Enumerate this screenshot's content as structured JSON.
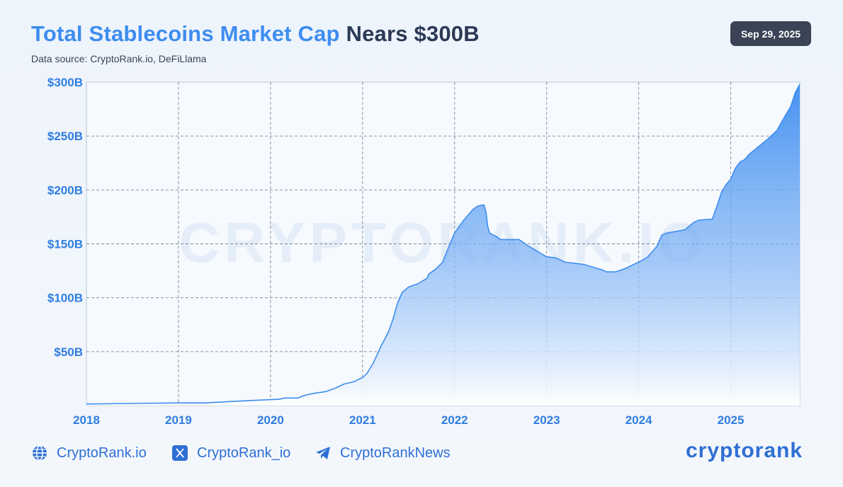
{
  "header": {
    "title_highlight": "Total Stablecoins Market Cap",
    "title_rest": " Nears $300B",
    "source": "Data source: CryptoRank.io, DeFiLlama",
    "date": "Sep 29, 2025"
  },
  "watermark": "CRYPTORANK.IO",
  "colors": {
    "accent": "#3d8df0",
    "title_dark": "#2b3a55",
    "line": "#3d8df0",
    "badge_bg": "#3b4356"
  },
  "chart_data": {
    "type": "area",
    "title": "Total Stablecoins Market Cap Nears $300B",
    "xlabel": "",
    "ylabel": "",
    "x_ticks": [
      "2018",
      "2019",
      "2020",
      "2021",
      "2022",
      "2023",
      "2024",
      "2025"
    ],
    "y_ticks": [
      "$50B",
      "$100B",
      "$150B",
      "$200B",
      "$250B",
      "$300B"
    ],
    "y_tick_values": [
      50,
      100,
      150,
      200,
      250,
      300
    ],
    "xlim": [
      2018.0,
      2025.75
    ],
    "ylim": [
      0,
      300
    ],
    "grid": true,
    "series": [
      {
        "values_unit": "billion USD",
        "points": [
          [
            2018.0,
            1.5
          ],
          [
            2018.5,
            2.0
          ],
          [
            2019.0,
            2.5
          ],
          [
            2019.3,
            2.5
          ],
          [
            2019.5,
            3.5
          ],
          [
            2019.75,
            4.5
          ],
          [
            2020.0,
            5.5
          ],
          [
            2020.1,
            6.0
          ],
          [
            2020.15,
            7.0
          ],
          [
            2020.3,
            7.0
          ],
          [
            2020.35,
            9.0
          ],
          [
            2020.45,
            11.0
          ],
          [
            2020.6,
            13.0
          ],
          [
            2020.7,
            16.0
          ],
          [
            2020.8,
            20.0
          ],
          [
            2020.9,
            22.0
          ],
          [
            2021.0,
            26.0
          ],
          [
            2021.05,
            30.0
          ],
          [
            2021.12,
            40.0
          ],
          [
            2021.2,
            55.0
          ],
          [
            2021.28,
            68.0
          ],
          [
            2021.33,
            80.0
          ],
          [
            2021.38,
            95.0
          ],
          [
            2021.43,
            105.0
          ],
          [
            2021.5,
            110.0
          ],
          [
            2021.6,
            113.0
          ],
          [
            2021.7,
            118.0
          ],
          [
            2021.72,
            122.0
          ],
          [
            2021.8,
            127.0
          ],
          [
            2021.87,
            133.0
          ],
          [
            2021.95,
            150.0
          ],
          [
            2022.0,
            160.0
          ],
          [
            2022.1,
            172.0
          ],
          [
            2022.2,
            182.0
          ],
          [
            2022.25,
            185.0
          ],
          [
            2022.3,
            186.0
          ],
          [
            2022.32,
            186.0
          ],
          [
            2022.34,
            180.0
          ],
          [
            2022.36,
            166.0
          ],
          [
            2022.38,
            160.0
          ],
          [
            2022.45,
            157.0
          ],
          [
            2022.5,
            154.0
          ],
          [
            2022.7,
            154.0
          ],
          [
            2022.8,
            148.0
          ],
          [
            2022.9,
            143.0
          ],
          [
            2023.0,
            138.0
          ],
          [
            2023.1,
            137.0
          ],
          [
            2023.2,
            133.0
          ],
          [
            2023.4,
            131.0
          ],
          [
            2023.6,
            126.0
          ],
          [
            2023.65,
            124.0
          ],
          [
            2023.75,
            124.0
          ],
          [
            2023.85,
            127.0
          ],
          [
            2023.95,
            131.0
          ],
          [
            2024.0,
            133.0
          ],
          [
            2024.1,
            138.0
          ],
          [
            2024.2,
            148.0
          ],
          [
            2024.25,
            158.0
          ],
          [
            2024.3,
            160.0
          ],
          [
            2024.5,
            163.0
          ],
          [
            2024.6,
            170.0
          ],
          [
            2024.65,
            172.0
          ],
          [
            2024.8,
            173.0
          ],
          [
            2024.85,
            185.0
          ],
          [
            2024.9,
            198.0
          ],
          [
            2024.95,
            205.0
          ],
          [
            2025.0,
            210.0
          ],
          [
            2025.05,
            220.0
          ],
          [
            2025.1,
            226.0
          ],
          [
            2025.15,
            228.0
          ],
          [
            2025.2,
            233.0
          ],
          [
            2025.3,
            240.0
          ],
          [
            2025.4,
            247.0
          ],
          [
            2025.5,
            255.0
          ],
          [
            2025.6,
            270.0
          ],
          [
            2025.65,
            277.0
          ],
          [
            2025.7,
            290.0
          ],
          [
            2025.75,
            298.0
          ]
        ]
      }
    ]
  },
  "footer": {
    "website": "CryptoRank.io",
    "twitter": "CryptoRank_io",
    "telegram": "CryptoRankNews",
    "brand": "cryptorank"
  }
}
